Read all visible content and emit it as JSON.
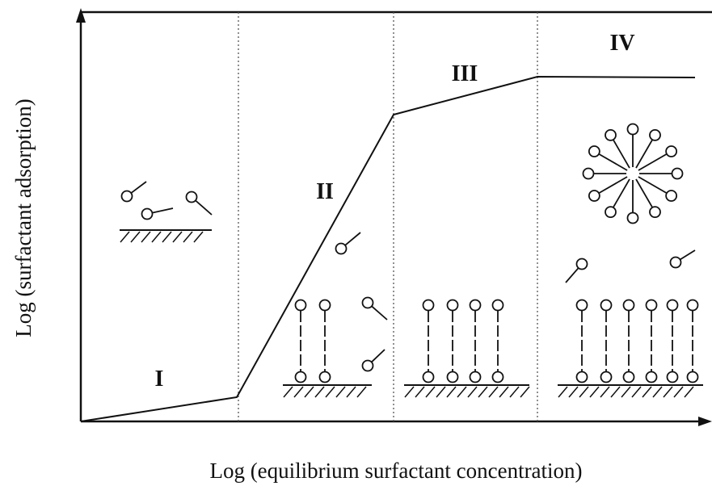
{
  "axes": {
    "x_label": "Log (equilibrium surfactant concentration)",
    "y_label": "Log (surfactant adsorption)"
  },
  "regions": [
    {
      "label": "I"
    },
    {
      "label": "II"
    },
    {
      "label": "III"
    },
    {
      "label": "IV"
    }
  ]
}
